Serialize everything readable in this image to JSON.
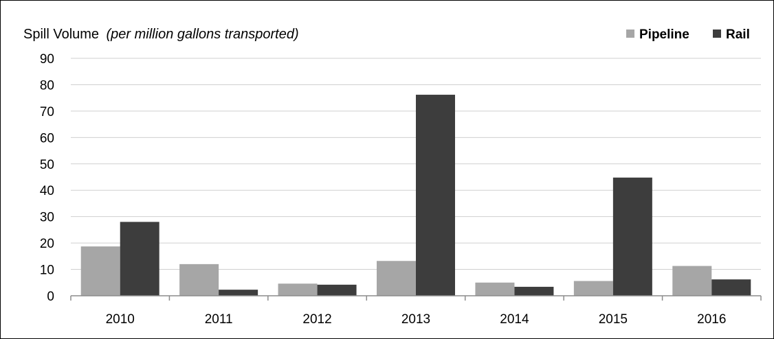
{
  "chart_data": {
    "type": "bar",
    "title": "Spill Volume",
    "subtitle": "(per million gallons transported)",
    "xlabel": "",
    "ylabel": "",
    "categories": [
      "2010",
      "2011",
      "2012",
      "2013",
      "2014",
      "2015",
      "2016"
    ],
    "series": [
      {
        "name": "Pipeline",
        "color": "#a6a6a6",
        "values": [
          18.7,
          12.0,
          4.6,
          13.2,
          5.0,
          5.6,
          11.3
        ]
      },
      {
        "name": "Rail",
        "color": "#3d3d3d",
        "values": [
          28.0,
          2.3,
          4.2,
          76.2,
          3.4,
          44.8,
          6.2
        ]
      }
    ],
    "ylim": [
      0,
      90
    ],
    "yticks": [
      "0",
      "10",
      "20",
      "30",
      "40",
      "50",
      "60",
      "70",
      "80",
      "90"
    ],
    "grid": true,
    "legend_position": "top-right"
  }
}
